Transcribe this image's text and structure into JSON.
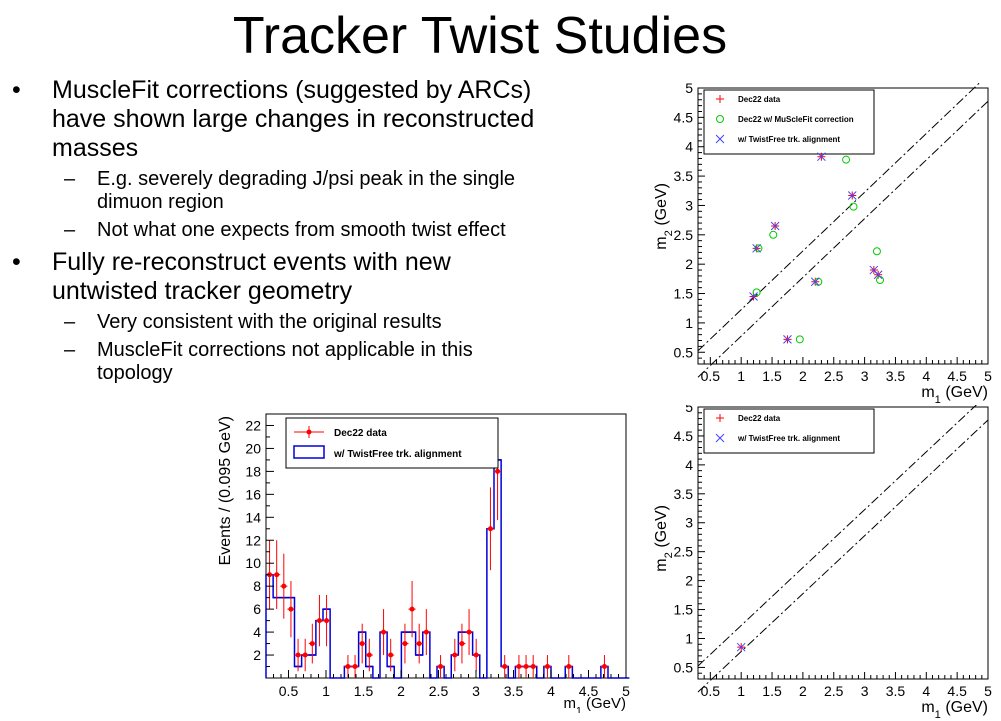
{
  "slide": {
    "title": "Tracker Twist Studies",
    "bullets": [
      {
        "text": "MuscleFit corrections (suggested by ARCs) have shown large changes in reconstructed masses",
        "lines": [
          "MuscleFit corrections (suggested by ARCs)",
          "have shown large changes in reconstructed",
          "masses"
        ],
        "subs": [
          {
            "lines": [
              "E.g. severely degrading J/psi peak in the single",
              "dimuon region"
            ]
          },
          {
            "lines": [
              "Not what one expects from smooth twist effect"
            ]
          }
        ]
      },
      {
        "text": "Fully re-reconstruct events with new untwisted tracker geometry",
        "lines": [
          "Fully re-reconstruct events with new",
          "untwisted tracker geometry"
        ],
        "subs": [
          {
            "lines": [
              "Very consistent with the original results"
            ]
          },
          {
            "lines": [
              "MuscleFit corrections not applicable in this",
              "topology"
            ]
          }
        ]
      }
    ],
    "bullet_glyph": "•",
    "dash_glyph": "–"
  },
  "chart_data": [
    {
      "type": "scatter",
      "xlabel": "m_1 (GeV)",
      "ylabel": "m_2 (GeV)",
      "xlim": [
        0.3,
        5.0
      ],
      "ylim": [
        0.3,
        5.0
      ],
      "xticks": [
        "0.5",
        "1",
        "1.5",
        "2",
        "2.5",
        "3",
        "3.5",
        "4",
        "4.5",
        "5"
      ],
      "yticks": [
        "0.5",
        "1",
        "1.5",
        "2",
        "2.5",
        "3",
        "3.5",
        "4",
        "4.5",
        "5"
      ],
      "legend": [
        "Dec22 data",
        "Dec22 w/ MuScleFit correction",
        "w/ TwistFree trk. alignment"
      ],
      "legend_position": "top-left",
      "band": {
        "lower": [
          [
            0.3,
            0.075
          ],
          [
            5.0,
            4.775
          ]
        ],
        "upper": [
          [
            0.3,
            0.525
          ],
          [
            5.0,
            5.225
          ]
        ]
      },
      "series": [
        {
          "name": "Dec22 data",
          "marker": "plus",
          "color": "#ff0000",
          "points": [
            [
              2.3,
              3.83
            ],
            [
              2.8,
              3.17
            ],
            [
              1.55,
              2.65
            ],
            [
              1.25,
              2.27
            ],
            [
              3.15,
              1.9
            ],
            [
              3.22,
              1.82
            ],
            [
              2.2,
              1.7
            ],
            [
              1.2,
              1.45
            ],
            [
              1.75,
              0.72
            ]
          ]
        },
        {
          "name": "Dec22 w/ MuScleFit correction",
          "marker": "circle",
          "color": "#00cc00",
          "points": [
            [
              2.7,
              3.78
            ],
            [
              2.82,
              2.98
            ],
            [
              1.52,
              2.5
            ],
            [
              1.28,
              2.27
            ],
            [
              3.2,
              2.22
            ],
            [
              3.25,
              1.73
            ],
            [
              2.25,
              1.7
            ],
            [
              1.25,
              1.52
            ],
            [
              1.95,
              0.72
            ]
          ]
        },
        {
          "name": "w/ TwistFree trk. alignment",
          "marker": "x",
          "color": "#4444ff",
          "points": [
            [
              2.3,
              3.83
            ],
            [
              2.8,
              3.17
            ],
            [
              1.55,
              2.65
            ],
            [
              1.25,
              2.27
            ],
            [
              3.15,
              1.9
            ],
            [
              3.22,
              1.82
            ],
            [
              2.2,
              1.7
            ],
            [
              1.2,
              1.45
            ],
            [
              1.75,
              0.72
            ]
          ]
        }
      ]
    },
    {
      "type": "bar",
      "xlabel": "m_1 (GeV)",
      "ylabel": "Events / (0.095 GeV)",
      "xlim": [
        0.2,
        5.0
      ],
      "ylim": [
        0,
        23
      ],
      "xticks": [
        "0.5",
        "1",
        "1.5",
        "2",
        "2.5",
        "3",
        "3.5",
        "4",
        "4.5",
        "5"
      ],
      "yticks": [
        "2",
        "4",
        "6",
        "8",
        "10",
        "12",
        "14",
        "16",
        "18",
        "20",
        "22"
      ],
      "legend": [
        "Dec22 data",
        "w/ TwistFree trk. alignment"
      ],
      "legend_position": "top-left",
      "bin_start": 0.2,
      "bin_width": 0.095,
      "series": [
        {
          "name": "Dec22 data",
          "style": "points",
          "color": "#ff0000",
          "values": [
            9,
            9,
            8,
            6,
            2,
            2,
            3,
            5,
            5,
            0,
            0,
            1,
            1,
            3,
            2,
            0,
            4,
            2,
            0,
            3,
            6,
            3,
            4,
            0,
            1,
            0,
            2,
            3,
            4,
            2,
            0,
            13,
            18,
            1,
            0,
            1,
            1,
            1,
            0,
            1,
            0,
            0,
            1,
            0,
            0,
            0,
            0,
            1,
            0,
            0,
            0
          ]
        },
        {
          "name": "w/ TwistFree trk. alignment",
          "style": "step",
          "color": "#0000dd",
          "values": [
            9,
            7,
            7,
            7,
            1,
            2,
            2,
            5,
            6,
            0,
            0,
            1,
            1,
            4,
            1,
            0,
            4,
            1,
            0,
            4,
            4,
            2,
            4,
            0,
            1,
            0,
            2,
            4,
            4,
            2,
            0,
            13,
            19,
            1,
            0,
            1,
            1,
            1,
            0,
            1,
            0,
            0,
            1,
            0,
            0,
            0,
            0,
            1,
            0,
            0,
            0
          ]
        }
      ]
    },
    {
      "type": "scatter",
      "xlabel": "m_1 (GeV)",
      "ylabel": "m_2 (GeV)",
      "xlim": [
        0.3,
        5.0
      ],
      "ylim": [
        0.3,
        5.0
      ],
      "xticks": [
        "0.5",
        "1",
        "1.5",
        "2",
        "2.5",
        "3",
        "3.5",
        "4",
        "4.5",
        "5"
      ],
      "yticks": [
        "0.5",
        "1",
        "1.5",
        "2",
        "2.5",
        "3",
        "3.5",
        "4",
        "4.5",
        "5"
      ],
      "legend": [
        "Dec22 data",
        "w/ TwistFree trk. alignment"
      ],
      "legend_position": "top-left",
      "band": {
        "lower": [
          [
            0.3,
            0.075
          ],
          [
            5.0,
            4.775
          ]
        ],
        "upper": [
          [
            0.3,
            0.525
          ],
          [
            5.0,
            5.225
          ]
        ]
      },
      "series": [
        {
          "name": "Dec22 data",
          "marker": "plus",
          "color": "#ff0000",
          "points": [
            [
              1.0,
              0.85
            ]
          ]
        },
        {
          "name": "w/ TwistFree trk. alignment",
          "marker": "x",
          "color": "#4444ff",
          "points": [
            [
              1.0,
              0.85
            ]
          ]
        }
      ]
    }
  ]
}
